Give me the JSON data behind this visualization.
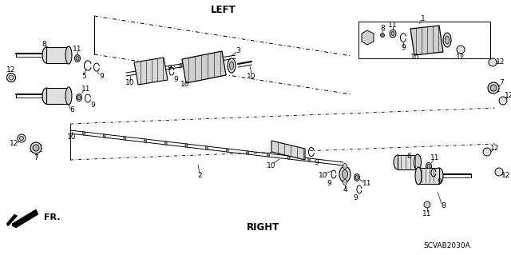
{
  "bg_color": "#ffffff",
  "line_color": "#000000",
  "text_color": "#000000",
  "title_left": "LEFT",
  "title_right": "RIGHT",
  "part_number": "SCVAB2030A",
  "fr_label": "FR.",
  "fig_width": 6.4,
  "fig_height": 3.19,
  "dpi": 100
}
